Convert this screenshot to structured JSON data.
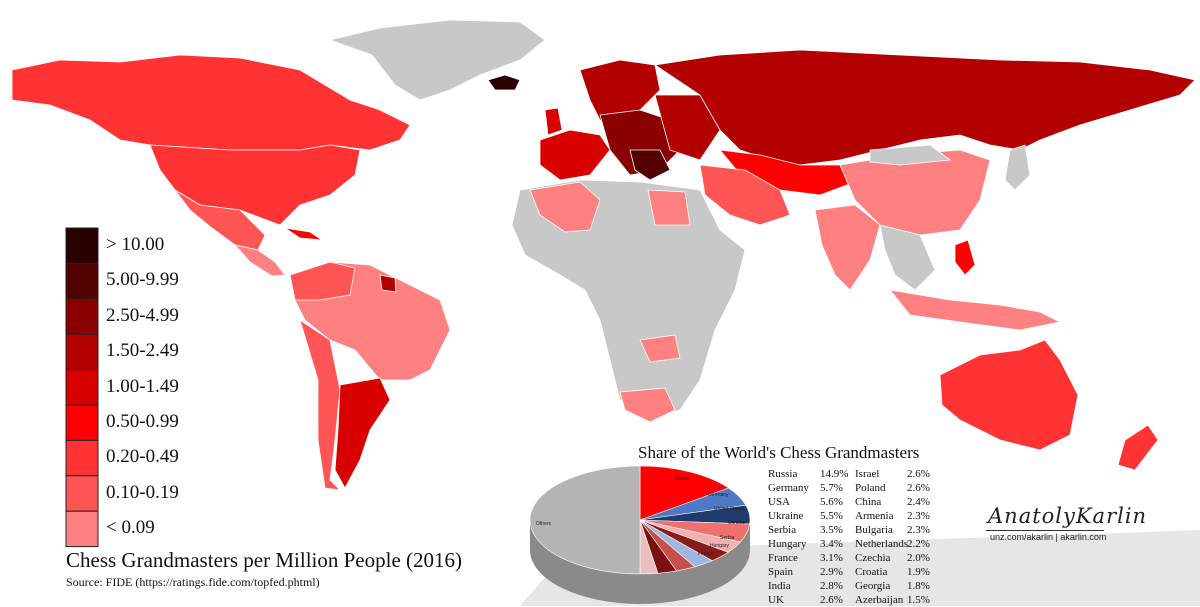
{
  "map": {
    "colors": {
      "none": "#c8c8c8",
      "lt009": "#ff8080",
      "b010_019": "#ff5555",
      "b020_049": "#ff3333",
      "b050_099": "#ff0000",
      "b100_149": "#d90000",
      "b150_249": "#b30000",
      "b250_499": "#8a0000",
      "b500_999": "#520000",
      "gt10": "#2a0000"
    }
  },
  "legend": {
    "items": [
      {
        "label": "> 10.00",
        "color": "#2a0000"
      },
      {
        "label": "5.00-9.99",
        "color": "#520000"
      },
      {
        "label": "2.50-4.99",
        "color": "#8a0000"
      },
      {
        "label": "1.50-2.49",
        "color": "#b30000"
      },
      {
        "label": "1.00-1.49",
        "color": "#d90000"
      },
      {
        "label": "0.50-0.99",
        "color": "#ff0000"
      },
      {
        "label": "0.20-0.49",
        "color": "#ff3333"
      },
      {
        "label": "0.10-0.19",
        "color": "#ff5555"
      },
      {
        "label": "< 0.09",
        "color": "#ff8080"
      }
    ]
  },
  "title": "Chess Grandmasters per Million People (2016)",
  "source": "Source: FIDE (https://ratings.fide.com/topfed.phtml)",
  "pie": {
    "title": "Share of the World's Chess Grandmasters",
    "slice_labels": [
      "Russia",
      "Germany",
      "United States",
      "Ukraine",
      "Serbia",
      "Hungary",
      "France",
      "Others"
    ],
    "slices": [
      {
        "label": "Russia",
        "value": 14.9,
        "color": "#ff0000"
      },
      {
        "label": "Germany",
        "value": 5.7,
        "color": "#4f79c6"
      },
      {
        "label": "United States",
        "value": 5.6,
        "color": "#1f3a6b"
      },
      {
        "label": "Ukraine",
        "value": 5.5,
        "color": "#f07070"
      },
      {
        "label": "Serbia",
        "value": 3.5,
        "color": "#f4b0b0"
      },
      {
        "label": "Hungary",
        "value": 3.4,
        "color": "#8b1a1a"
      },
      {
        "label": "France",
        "value": 3.1,
        "color": "#9fb6e0"
      },
      {
        "label": "Spain",
        "value": 2.9,
        "color": "#c8504a"
      },
      {
        "label": "India",
        "value": 2.8,
        "color": "#7a1010"
      },
      {
        "label": "UK",
        "value": 2.6,
        "color": "#e8c0c0"
      },
      {
        "label": "Others",
        "value": 50.0,
        "color": "#b4b4b4"
      }
    ],
    "table_left": [
      {
        "country": "Russia",
        "pct": "14.9%"
      },
      {
        "country": "Germany",
        "pct": "5.7%"
      },
      {
        "country": "USA",
        "pct": "5.6%"
      },
      {
        "country": "Ukraine",
        "pct": "5.5%"
      },
      {
        "country": "Serbia",
        "pct": "3.5%"
      },
      {
        "country": "Hungary",
        "pct": "3.4%"
      },
      {
        "country": "France",
        "pct": "3.1%"
      },
      {
        "country": "Spain",
        "pct": "2.9%"
      },
      {
        "country": "India",
        "pct": "2.8%"
      },
      {
        "country": "UK",
        "pct": "2.6%"
      }
    ],
    "table_right": [
      {
        "country": "Israel",
        "pct": "2.6%"
      },
      {
        "country": "Poland",
        "pct": "2.6%"
      },
      {
        "country": "China",
        "pct": "2.4%"
      },
      {
        "country": "Armenia",
        "pct": "2.3%"
      },
      {
        "country": "Bulgaria",
        "pct": "2.3%"
      },
      {
        "country": "Netherlands",
        "pct": "2.2%"
      },
      {
        "country": "Czechia",
        "pct": "2.0%"
      },
      {
        "country": "Croatia",
        "pct": "1.9%"
      },
      {
        "country": "Georgia",
        "pct": "1.8%"
      },
      {
        "country": "Azerbaijan",
        "pct": "1.5%"
      }
    ]
  },
  "signature": {
    "name": "AnatolyKarlin",
    "url": "unz.com/akarlin | akarlin.com"
  }
}
